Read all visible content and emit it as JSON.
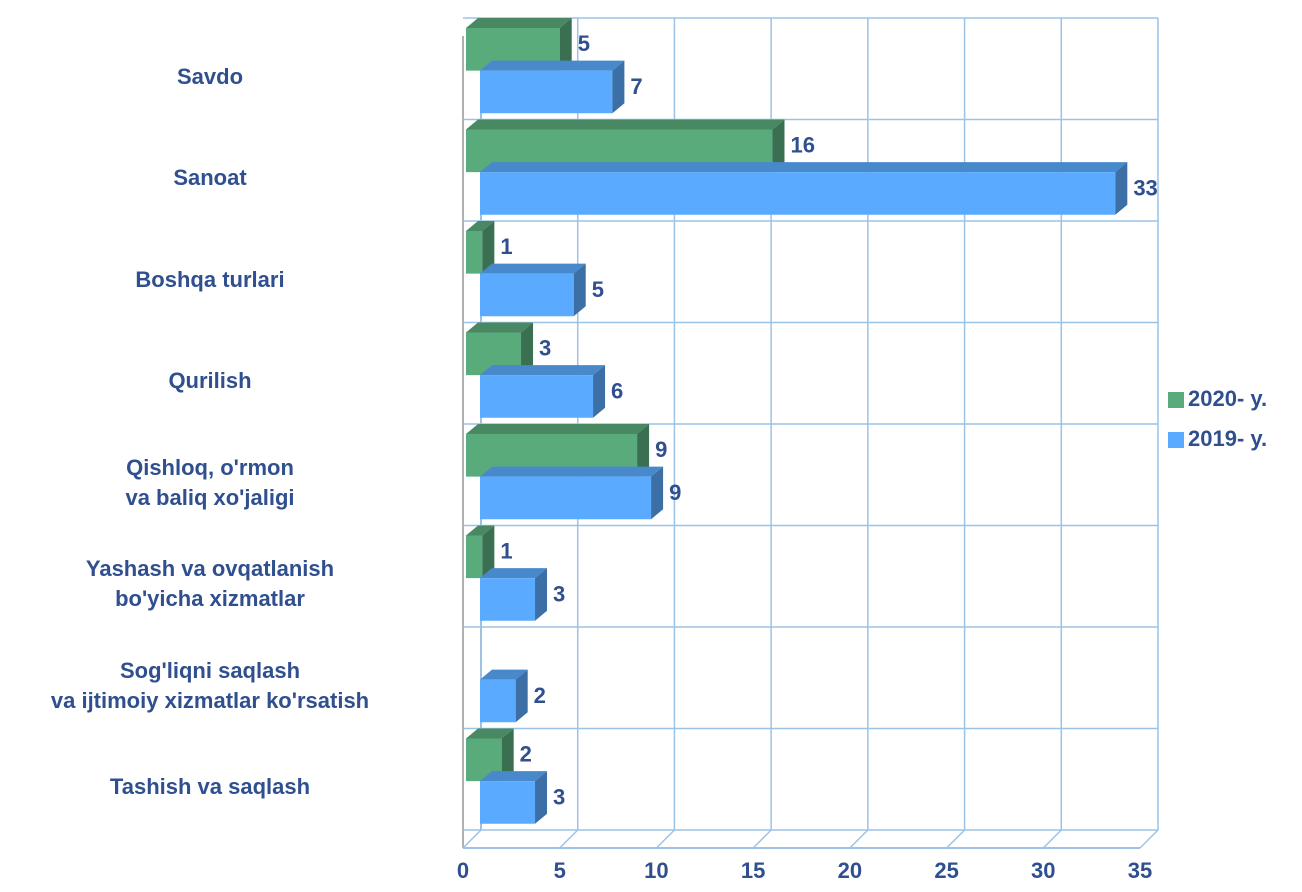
{
  "chart_data": {
    "type": "bar",
    "orientation": "horizontal",
    "categories": [
      "Savdo",
      "Sanoat",
      "Boshqa turlari",
      "Qurilish",
      "Qishloq, o'rmon\nva baliq xo'jaligi",
      "Yashash va ovqatlanish\nbo'yicha xizmatlar",
      "Sog'liqni saqlash\nva ijtimoiy xizmatlar ko'rsatish",
      "Tashish va saqlash"
    ],
    "series": [
      {
        "name": "2020- y.",
        "color": "#5aab7c",
        "values": [
          5,
          16,
          1,
          3,
          9,
          1,
          null,
          2
        ]
      },
      {
        "name": "2019- y.",
        "color": "#5aabff",
        "values": [
          7,
          33,
          5,
          6,
          9,
          3,
          2,
          3
        ]
      }
    ],
    "xlim": [
      0,
      35
    ],
    "xticks": [
      0,
      5,
      10,
      15,
      20,
      25,
      30,
      35
    ],
    "grid": true,
    "legend": "right"
  }
}
